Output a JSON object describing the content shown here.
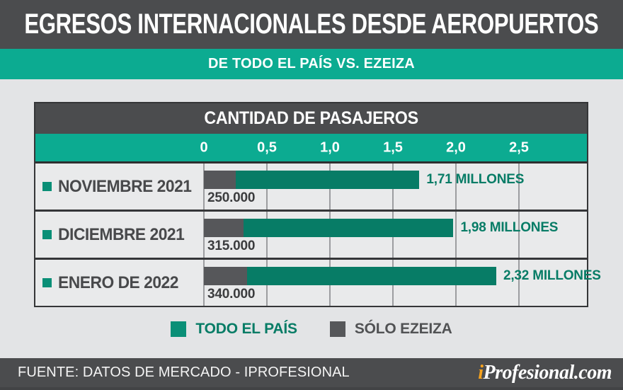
{
  "header": {
    "title": "EGRESOS INTERNACIONALES DESDE AEROPUERTOS",
    "subtitle": "DE TODO EL PAÍS VS. EZEIZA"
  },
  "chart": {
    "panel_title": "CANTIDAD DE PASAJEROS",
    "axis_ticks": [
      "0",
      "0,5",
      "1,0",
      "1,5",
      "2,0",
      "2,5"
    ],
    "rows": [
      {
        "label": "NOVIEMBRE 2021",
        "country_millions": 1.71,
        "country_label": "1,71 MILLONES",
        "ezeiza_passengers": 250000,
        "ezeiza_label": "250.000"
      },
      {
        "label": "DICIEMBRE 2021",
        "country_millions": 1.98,
        "country_label": "1,98 MILLONES",
        "ezeiza_passengers": 315000,
        "ezeiza_label": "315.000"
      },
      {
        "label": "ENERO DE 2022",
        "country_millions": 2.32,
        "country_label": "2,32 MILLONES",
        "ezeiza_passengers": 340000,
        "ezeiza_label": "340.000"
      }
    ]
  },
  "legend": {
    "items": [
      {
        "label": "TODO EL PAÍS",
        "color": "#0a8f77",
        "text_color": "#077c66"
      },
      {
        "label": "SÓLO EZEIZA",
        "color": "#56575a",
        "text_color": "#515254"
      }
    ]
  },
  "footer": {
    "source": "FUENTE: DATOS DE MERCADO - IPROFESIONAL",
    "logo": {
      "prefix": "i",
      "rest": "Profesional.com"
    }
  },
  "colors": {
    "dark_band": "#4b4c4e",
    "teal_band": "#0cab91",
    "country_bar": "#077c66",
    "ezeiza_bar": "#56575a",
    "accent_orange": "#f6a21d",
    "row_background": "#e9eaeb",
    "page_background": "#e3e4e6"
  },
  "chart_data": {
    "type": "bar",
    "orientation": "horizontal",
    "title": "CANTIDAD DE PASAJEROS",
    "subtitle": "DE TODO EL PAÍS VS. EZEIZA",
    "unit": "millones de pasajeros",
    "categories": [
      "NOVIEMBRE 2021",
      "DICIEMBRE 2021",
      "ENERO DE 2022"
    ],
    "series": [
      {
        "name": "TODO EL PAÍS",
        "values": [
          1.71,
          1.98,
          2.32
        ],
        "labels": [
          "1,71 MILLONES",
          "1,98 MILLONES",
          "2,32 MILLONES"
        ],
        "color": "#077c66"
      },
      {
        "name": "SÓLO EZEIZA",
        "values": [
          0.25,
          0.315,
          0.34
        ],
        "labels": [
          "250.000",
          "315.000",
          "340.000"
        ],
        "color": "#56575a"
      }
    ],
    "x_ticks": [
      0,
      0.5,
      1.0,
      1.5,
      2.0,
      2.5
    ],
    "xlim": [
      0,
      3.05
    ],
    "grid": true,
    "legend_position": "bottom",
    "source": "FUENTE: DATOS DE MERCADO - IPROFESIONAL"
  }
}
